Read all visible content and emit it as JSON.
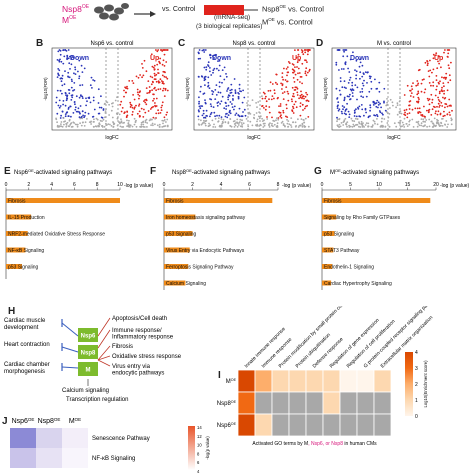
{
  "top": {
    "nsp8_label": "Nsp8",
    "nsp8_sup": "OE",
    "m_label": "M",
    "m_sup": "OE",
    "vs_control": "vs. Control",
    "mrna_seq": "(mRNA-seq)",
    "replicates": "(3 biological replicates)",
    "nsp8_vs": "Nsp8",
    "nsp8_vs_sup": "OE",
    "nsp8_vs_tail": " vs. Control",
    "m_vs": "M",
    "m_vs_sup": "OE",
    "m_vs_tail": " vs. Control"
  },
  "volcano": {
    "panels": [
      {
        "letter": "B",
        "title": "Nsp6 vs. control",
        "down": "Down",
        "up": "Up",
        "xlabel": "logFC",
        "ylabel": "-log10(FDR)"
      },
      {
        "letter": "C",
        "title": "Nsp8 vs. control",
        "down": "Down",
        "up": "Up",
        "xlabel": "logFC",
        "ylabel": "-log10(FDR)"
      },
      {
        "letter": "D",
        "title": "M vs. control",
        "down": "Down",
        "up": "Up",
        "xlabel": "logFC",
        "ylabel": "-log10(FDR)"
      }
    ],
    "colors": {
      "down": "#2a35b8",
      "up": "#e0231c",
      "ns": "#aaaaaa"
    }
  },
  "pathways": {
    "axis_label": "-log (p value)",
    "bar_color": "#ef8b1a",
    "panels": [
      {
        "letter": "E",
        "title": "Nsp6",
        "title_sup": "OE",
        "title_tail": "-activated signaling pathways",
        "ticks": [
          "0",
          "2",
          "4",
          "6",
          "8",
          "10"
        ],
        "xmax": 10,
        "bars": [
          {
            "label": "Fibrosis",
            "value": 10
          },
          {
            "label": "IL-15 Production",
            "value": 2.2
          },
          {
            "label": "NRF2-mediated Oxidative Stress Response",
            "value": 1.9
          },
          {
            "label": "NF-κB Signaling",
            "value": 1.7
          },
          {
            "label": "p53 Signaling",
            "value": 1.4
          }
        ]
      },
      {
        "letter": "F",
        "title": "Nsp8",
        "title_sup": "OE",
        "title_tail": "-activated signaling pathways",
        "ticks": [
          "0",
          "2",
          "4",
          "6",
          "8"
        ],
        "xmax": 8,
        "bars": [
          {
            "label": "Fibrosis",
            "value": 7.6
          },
          {
            "label": "Iron homeostasis signaling pathway",
            "value": 2.2
          },
          {
            "label": "p53 Signaling",
            "value": 2.0
          },
          {
            "label": "Virus Entry via Endocytic Pathways",
            "value": 1.8
          },
          {
            "label": "Ferroptosis Signaling Pathway",
            "value": 1.7
          },
          {
            "label": "Calcium Signaling",
            "value": 1.5
          }
        ]
      },
      {
        "letter": "G",
        "title": "M",
        "title_sup": "OE",
        "title_tail": "-activated signaling pathways",
        "ticks": [
          "0",
          "5",
          "10",
          "15",
          "20"
        ],
        "xmax": 20,
        "bars": [
          {
            "label": "Fibrosis",
            "value": 19
          },
          {
            "label": "Signaling by Rho Family GTPases",
            "value": 2.5
          },
          {
            "label": "p53 Signaling",
            "value": 2.2
          },
          {
            "label": "STAT3 Pathway",
            "value": 2.0
          },
          {
            "label": "Endothelin-1 Signaling",
            "value": 1.8
          },
          {
            "label": "Cardiac Hypertrophy Signaling",
            "value": 1.6
          }
        ]
      }
    ]
  },
  "diagram": {
    "letter": "H",
    "left": [
      "Cardiac muscle development",
      "Heart contraction",
      "Cardiac chamber morphogenesis"
    ],
    "center": [
      "Nsp6",
      "Nsp8",
      "M"
    ],
    "right": [
      "Apoptosis/Cell death",
      "Immune response/ Inflammatory response",
      "Fibrosis",
      "Oxidative stress response",
      "Virus entry via endocytic pathways"
    ],
    "bottom1": "Calcium signaling",
    "bottom2": "Transcription regulation",
    "green": "#7dbb2d"
  },
  "heatmap": {
    "letter": "I",
    "columns": [
      "Innate immune response",
      "Immune response",
      "Protein modification by small protein conjugation",
      "Protein ubiquitination",
      "Defense response",
      "Regulation of gene expression",
      "Regulation of cell proliferation",
      "G protein-coupled receptor signaling pathway",
      "Extracellular matrix organization"
    ],
    "rows": [
      {
        "name": "M",
        "sup": "OE",
        "cells": [
          4,
          2,
          1,
          1,
          1,
          1,
          0,
          0,
          1
        ]
      },
      {
        "name": "Nsp8",
        "sup": "OE",
        "cells": [
          3,
          null,
          null,
          null,
          null,
          1,
          null,
          null,
          null
        ]
      },
      {
        "name": "Nsp6",
        "sup": "OE",
        "cells": [
          4,
          1,
          null,
          null,
          null,
          null,
          null,
          null,
          null
        ]
      }
    ],
    "xlabel": "Activated GO terms by M",
    "xlabel_tail": ", Nsp6",
    "xlabel_tail2": ", or Nsp8",
    "xlabel_end": " in human CMs",
    "colorbar_label": "Log10(Enrichment score)",
    "colorbar_ticks": [
      "0",
      "1",
      "2",
      "3",
      "4"
    ]
  },
  "panelJ": {
    "letter": "J",
    "cols": [
      "Nsp6",
      "Nsp8",
      "M"
    ],
    "col_sup": "OE",
    "rows": [
      "Senescence Pathway",
      "NF-κB Signaling"
    ],
    "cb_ticks": [
      "14",
      "12",
      "10",
      "8",
      "6",
      "4"
    ],
    "cb_label": "-log(p value)"
  }
}
